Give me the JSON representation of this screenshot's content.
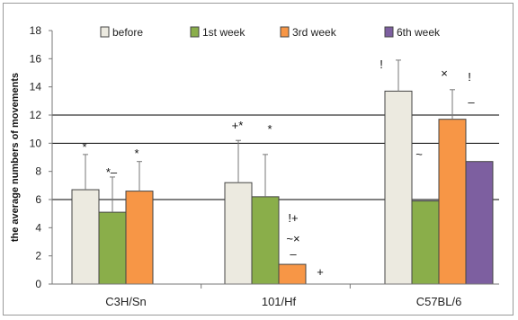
{
  "chart_data": {
    "type": "bar",
    "title": "",
    "xlabel": "",
    "ylabel": "the average numbers of movements",
    "ylim": [
      0,
      18
    ],
    "yticks": [
      0,
      2,
      4,
      6,
      8,
      10,
      12,
      14,
      16,
      18
    ],
    "gridlines": [
      6,
      10,
      12
    ],
    "legend_position": "top",
    "categories": [
      "C3H/Sn",
      "101/Hf",
      "C57BL/6"
    ],
    "series": [
      {
        "name": "before",
        "color": "#eceae0",
        "values": [
          6.7,
          7.2,
          13.7
        ],
        "errors": [
          2.5,
          3.0,
          2.2
        ]
      },
      {
        "name": "1st week",
        "color": "#8aae4a",
        "values": [
          5.1,
          6.2,
          5.9
        ],
        "errors": [
          2.5,
          3.0,
          null
        ]
      },
      {
        "name": "3rd week",
        "color": "#f79646",
        "values": [
          6.6,
          1.4,
          11.7
        ],
        "errors": [
          2.1,
          null,
          2.1
        ]
      },
      {
        "name": "6th week",
        "color": "#7d5fa0",
        "values": [
          null,
          null,
          8.7
        ],
        "errors": [
          null,
          null,
          null
        ]
      }
    ],
    "annotations": [
      {
        "category": 0,
        "series": 0,
        "text": "*"
      },
      {
        "category": 0,
        "series": 1,
        "text": "*–"
      },
      {
        "category": 0,
        "series": 2,
        "text": "*"
      },
      {
        "category": 1,
        "series": 0,
        "text": "+*"
      },
      {
        "category": 1,
        "series": 1,
        "text": "*"
      },
      {
        "category": 1,
        "series": 2,
        "text": "!+"
      },
      {
        "category": 1,
        "series": 2,
        "text": "~×"
      },
      {
        "category": 1,
        "series": 2,
        "text": "–"
      },
      {
        "category": 1,
        "series": 3,
        "text": "+"
      },
      {
        "category": 2,
        "series": 0,
        "text": "!"
      },
      {
        "category": 2,
        "series": 1,
        "text": "~"
      },
      {
        "category": 2,
        "series": 2,
        "text": "×"
      },
      {
        "category": 2,
        "series": 3,
        "text": "!"
      },
      {
        "category": 2,
        "series": 3,
        "text": "–"
      }
    ]
  }
}
